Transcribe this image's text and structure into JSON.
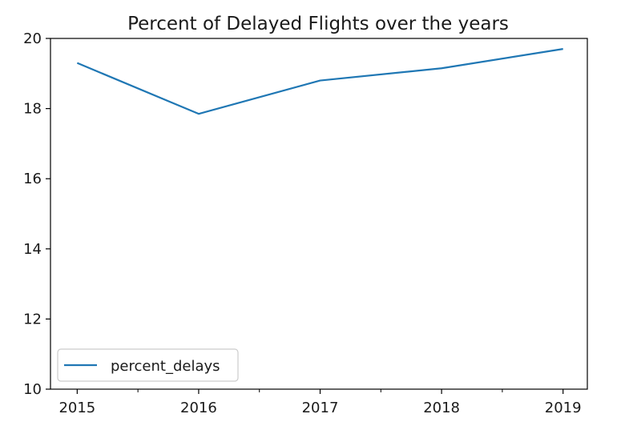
{
  "chart_data": {
    "type": "line",
    "title": "Percent of Delayed Flights over the years",
    "xlabel": "",
    "ylabel": "",
    "x": [
      "2015",
      "2016",
      "2017",
      "2018",
      "2019"
    ],
    "xlim": [
      2014.78,
      2019.2
    ],
    "ylim": [
      10,
      20
    ],
    "yticks": [
      "10",
      "12",
      "14",
      "16",
      "18",
      "20"
    ],
    "series": [
      {
        "name": "percent_delays",
        "color": "#1f77b4",
        "values": [
          19.3,
          17.85,
          18.8,
          19.15,
          19.7
        ]
      }
    ],
    "legend": {
      "position": "lower-left",
      "label": "percent_delays"
    },
    "grid": false
  }
}
